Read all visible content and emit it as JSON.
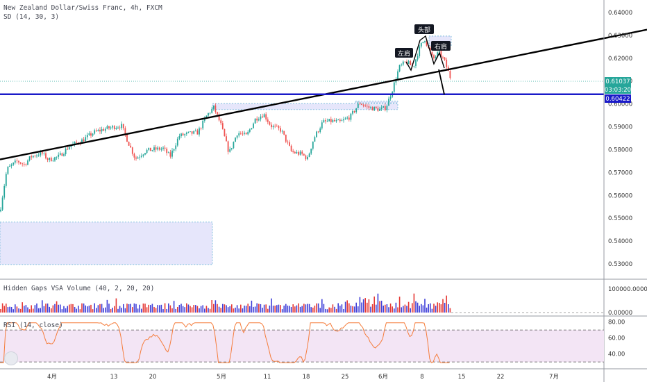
{
  "header": {
    "title": "New Zealand Dollar/Swiss Franc, 4h, FXCM",
    "indicator": "SD (14, 30, 3)"
  },
  "panes": {
    "volume_title": "Hidden Gaps VSA Volume (40, 2, 20, 20)",
    "rsi_title": "RSI (14, close)"
  },
  "price_badges": {
    "last_price": "0.61037",
    "countdown": "03:03:20",
    "support_price": "0.60422"
  },
  "pattern_labels": {
    "left_shoulder": "左肩",
    "head": "头部",
    "right_shoulder": "右肩"
  },
  "colors": {
    "up": "#26a69a",
    "down": "#ef5350",
    "trendline": "#000000",
    "support_line": "#1a1ac8",
    "zone_fill": "#e6e6fb",
    "rsi_line": "#f57c3a",
    "rsi_band": "#f3e5f5",
    "vol_blue": "#3f3fd8",
    "vol_red": "#e53935"
  },
  "chart_data": [
    {
      "type": "candlestick",
      "title": "New Zealand Dollar/Swiss Franc, 4h, FXCM",
      "ylim": [
        0.525,
        0.645
      ],
      "y_ticks": [
        "0.64000",
        "0.63000",
        "0.62000",
        "0.61000",
        "0.60000",
        "0.59000",
        "0.58000",
        "0.57000",
        "0.56000",
        "0.55000",
        "0.54000",
        "0.53000"
      ],
      "x_ticks": [
        "4月",
        "13",
        "20",
        "5月",
        "11",
        "18",
        "25",
        "6月",
        "8",
        "15",
        "22",
        "7月"
      ],
      "path_points": [
        [
          0,
          0.553
        ],
        [
          10,
          0.5715
        ],
        [
          25,
          0.575
        ],
        [
          35,
          0.5735
        ],
        [
          45,
          0.577
        ],
        [
          60,
          0.5785
        ],
        [
          70,
          0.5755
        ],
        [
          85,
          0.577
        ],
        [
          100,
          0.5815
        ],
        [
          118,
          0.584
        ],
        [
          135,
          0.5875
        ],
        [
          150,
          0.589
        ],
        [
          165,
          0.59
        ],
        [
          175,
          0.5905
        ],
        [
          185,
          0.583
        ],
        [
          195,
          0.576
        ],
        [
          210,
          0.5795
        ],
        [
          220,
          0.58
        ],
        [
          235,
          0.5805
        ],
        [
          245,
          0.577
        ],
        [
          258,
          0.586
        ],
        [
          272,
          0.587
        ],
        [
          285,
          0.5875
        ],
        [
          298,
          0.595
        ],
        [
          308,
          0.5985
        ],
        [
          318,
          0.591
        ],
        [
          330,
          0.5785
        ],
        [
          342,
          0.5875
        ],
        [
          355,
          0.586
        ],
        [
          368,
          0.5935
        ],
        [
          380,
          0.5955
        ],
        [
          390,
          0.5905
        ],
        [
          405,
          0.5885
        ],
        [
          420,
          0.579
        ],
        [
          435,
          0.578
        ],
        [
          443,
          0.576
        ],
        [
          452,
          0.585
        ],
        [
          465,
          0.592
        ],
        [
          478,
          0.5925
        ],
        [
          490,
          0.592
        ],
        [
          505,
          0.5945
        ],
        [
          518,
          0.6005
        ],
        [
          530,
          0.5985
        ],
        [
          548,
          0.5975
        ],
        [
          556,
          0.5985
        ],
        [
          565,
          0.606
        ],
        [
          575,
          0.616
        ],
        [
          585,
          0.6185
        ],
        [
          595,
          0.616
        ],
        [
          605,
          0.625
        ],
        [
          612,
          0.6285
        ],
        [
          618,
          0.6235
        ],
        [
          624,
          0.6195
        ],
        [
          632,
          0.6225
        ],
        [
          640,
          0.619
        ],
        [
          650,
          0.6104
        ]
      ],
      "trendline": {
        "from": [
          0,
          0.5757
        ],
        "to": [
          932,
          0.6325
        ]
      },
      "horizontal_line": 0.60422,
      "zones": [
        {
          "from_x": 0,
          "to_x": 306,
          "from_y": 0.5297,
          "to_y": 0.5483
        },
        {
          "from_x": 306,
          "to_x": 573,
          "from_y": 0.5975,
          "to_y": 0.6002
        },
        {
          "from_x": 512,
          "to_x": 573,
          "from_y": 0.6005,
          "to_y": 0.6012
        },
        {
          "from_x": 618,
          "to_x": 650,
          "from_y": 0.6255,
          "to_y": 0.6297
        }
      ]
    },
    {
      "type": "bar",
      "title": "Hidden Gaps VSA Volume (40, 2, 20, 20)",
      "ylim": [
        0,
        130000
      ],
      "y_ticks": [
        "100000.00000",
        "0.00000"
      ]
    },
    {
      "type": "line",
      "title": "RSI (14, close)",
      "ylim": [
        24,
        84
      ],
      "y_ticks": [
        "80.00",
        "60.00",
        "40.00"
      ],
      "bands": [
        30,
        70
      ]
    }
  ]
}
